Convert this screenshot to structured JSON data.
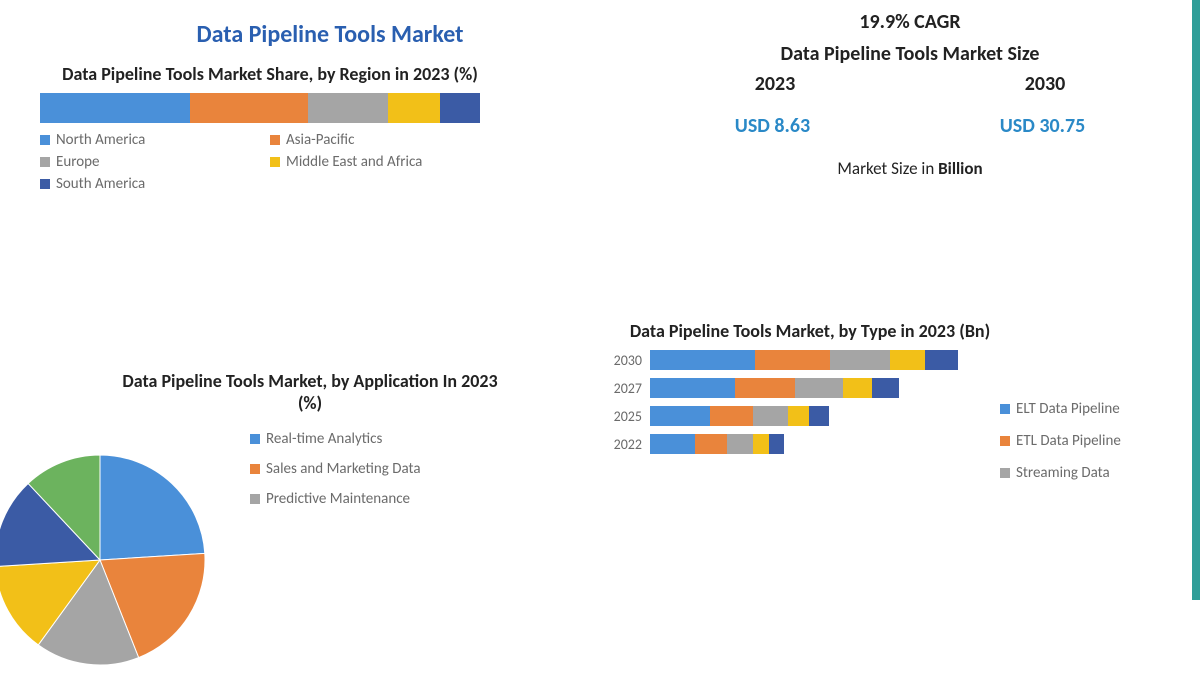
{
  "colors": {
    "blue": "#4a90d9",
    "orange": "#e9843c",
    "grey": "#a5a5a5",
    "yellow": "#f2c018",
    "darkblue": "#3b5ba5",
    "green": "#6cb35e",
    "title_blue": "#2a5fb0",
    "value_blue": "#2a89c7",
    "text_grey": "#6b6b6b",
    "border_teal": "#2f9e99"
  },
  "main_title": "Data Pipeline Tools Market",
  "main_title_fontsize": 24,
  "region_chart": {
    "title": "Data Pipeline Tools Market Share, by Region in 2023 (%)",
    "title_fontsize": 18,
    "segments": [
      {
        "label": "North America",
        "value": 34,
        "color": "#4a90d9"
      },
      {
        "label": "Asia-Pacific",
        "value": 27,
        "color": "#e9843c"
      },
      {
        "label": "Europe",
        "value": 18,
        "color": "#a5a5a5"
      },
      {
        "label": "Middle East and Africa",
        "value": 12,
        "color": "#f2c018"
      },
      {
        "label": "South America",
        "value": 9,
        "color": "#3b5ba5"
      }
    ]
  },
  "metrics": {
    "cagr": "19.9% CAGR",
    "cagr_fontsize": 20,
    "size_title": "Data Pipeline Tools Market Size",
    "size_title_fontsize": 20,
    "year1": "2023",
    "year2": "2030",
    "year_fontsize": 20,
    "val1": "USD 8.63",
    "val2": "USD 30.75",
    "val_fontsize": 20,
    "unit_prefix": "Market Size in ",
    "unit_bold": "Billion",
    "unit_fontsize": 17
  },
  "application_chart": {
    "title": "Data Pipeline Tools Market, by Application In 2023 (%)",
    "title_fontsize": 18,
    "slices": [
      {
        "label": "Real-time Analytics",
        "value": 24,
        "color": "#4a90d9"
      },
      {
        "label": "Sales and Marketing Data",
        "value": 20,
        "color": "#e9843c"
      },
      {
        "label": "Predictive Maintenance",
        "value": 16,
        "color": "#a5a5a5"
      },
      {
        "label": "",
        "value": 14,
        "color": "#f2c018"
      },
      {
        "label": "",
        "value": 14,
        "color": "#3b5ba5"
      },
      {
        "label": "",
        "value": 12,
        "color": "#6cb35e"
      }
    ],
    "radius": 105
  },
  "type_chart": {
    "title": "Data Pipeline Tools Market, by Type in 2023 (Bn)",
    "title_fontsize": 18,
    "unit_scale": 10,
    "rows": [
      {
        "year": "2030",
        "values": [
          10.5,
          7.5,
          6.0,
          3.5,
          3.25
        ]
      },
      {
        "year": "2027",
        "values": [
          8.5,
          6.0,
          4.8,
          2.9,
          2.7
        ]
      },
      {
        "year": "2025",
        "values": [
          6.0,
          4.3,
          3.5,
          2.1,
          2.0
        ]
      },
      {
        "year": "2022",
        "values": [
          4.5,
          3.2,
          2.6,
          1.6,
          1.5
        ]
      }
    ],
    "series": [
      {
        "label": "ELT Data Pipeline",
        "color": "#4a90d9"
      },
      {
        "label": "ETL Data Pipeline",
        "color": "#e9843c"
      },
      {
        "label": "Streaming Data",
        "color": "#a5a5a5"
      },
      {
        "label": "",
        "color": "#f2c018"
      },
      {
        "label": "",
        "color": "#3b5ba5"
      }
    ]
  }
}
